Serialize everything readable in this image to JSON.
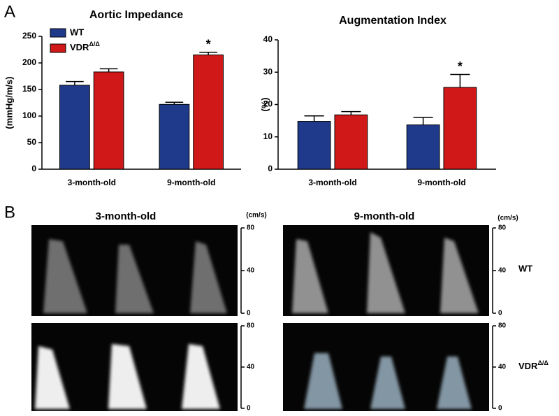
{
  "panel_a_label": "A",
  "chart_data": [
    {
      "type": "bar",
      "title": "Aortic Impedance",
      "ylabel": "(mmHg/m/s)",
      "categories": [
        "3-month-old",
        "9-month-old"
      ],
      "series": [
        {
          "name": "WT",
          "color": "#1f3a8a",
          "values": [
            158,
            122
          ],
          "errors": [
            7,
            4
          ]
        },
        {
          "name": "VDRΔ/Δ",
          "color": "#d01818",
          "values": [
            183,
            215
          ],
          "errors": [
            6,
            5
          ]
        }
      ],
      "ylim": [
        0,
        250
      ],
      "yticks": [
        0,
        50,
        100,
        150,
        200,
        250
      ],
      "annotation": "*",
      "legend": "upper left"
    },
    {
      "type": "bar",
      "title": "Augmentation Index",
      "ylabel": "(%)",
      "categories": [
        "3-month-old",
        "9-month-old"
      ],
      "series": [
        {
          "name": "WT",
          "color": "#1f3a8a",
          "values": [
            14.8,
            13.7
          ],
          "errors": [
            1.7,
            2.3
          ]
        },
        {
          "name": "VDRΔ/Δ",
          "color": "#d01818",
          "values": [
            16.8,
            25.3
          ],
          "errors": [
            1,
            4
          ]
        }
      ],
      "ylim": [
        0,
        40
      ],
      "yticks": [
        0,
        10,
        20,
        30,
        40
      ],
      "annotation": "*"
    }
  ],
  "panel_b": {
    "label": "B",
    "columns": [
      "3-month-old",
      "9-month-old"
    ],
    "unit": "(cm/s)",
    "ticks": [
      0,
      40,
      80
    ],
    "rows": [
      "WT",
      "VDRΔ/Δ"
    ]
  }
}
